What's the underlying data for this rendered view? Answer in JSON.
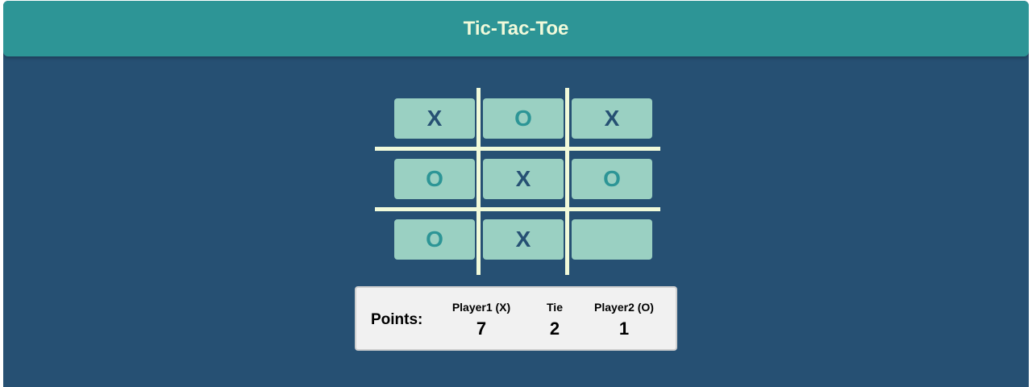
{
  "header": {
    "title": "Tic-Tac-Toe"
  },
  "board": {
    "cells": [
      [
        "X",
        "O",
        "X"
      ],
      [
        "O",
        "X",
        "O"
      ],
      [
        "O",
        "X",
        ""
      ]
    ]
  },
  "scoreboard": {
    "label": "Points:",
    "columns": [
      {
        "name": "Player1 (X)",
        "value": "7"
      },
      {
        "name": "Tie",
        "value": "2"
      },
      {
        "name": "Player2 (O)",
        "value": "1"
      }
    ]
  },
  "colors": {
    "background": "#265073",
    "header": "#2d9596",
    "grid_lines": "#f1fada",
    "cell": "#9ad0c2",
    "x_mark": "#265073",
    "o_mark": "#2d9596"
  }
}
